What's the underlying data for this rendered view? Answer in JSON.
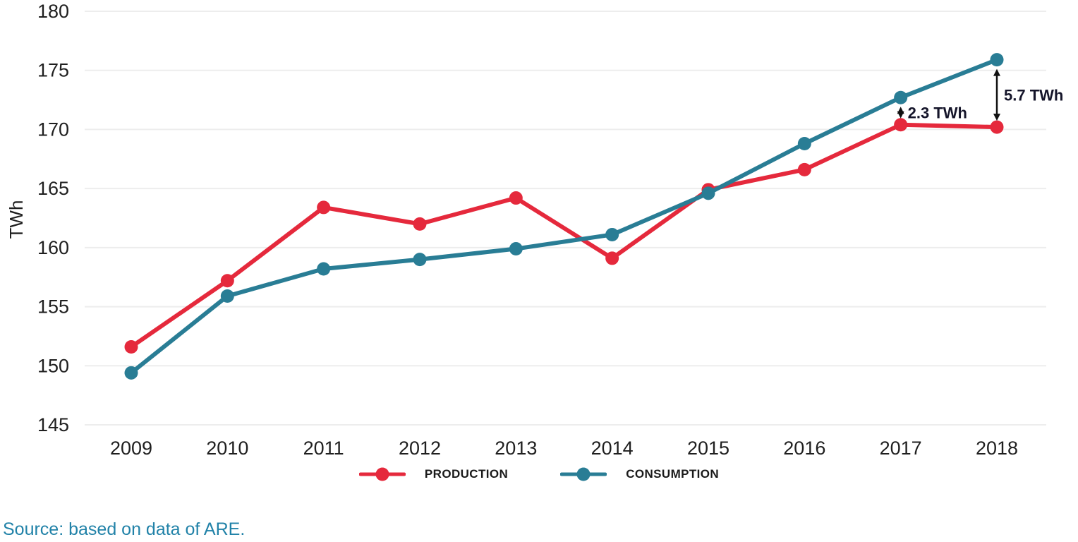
{
  "chart_data": {
    "type": "line",
    "x": [
      2009,
      2010,
      2011,
      2012,
      2013,
      2014,
      2015,
      2016,
      2017,
      2018
    ],
    "series": [
      {
        "name": "PRODUCTION",
        "color": "#e5293c",
        "values": [
          151.6,
          157.2,
          163.4,
          162.0,
          164.2,
          159.1,
          164.9,
          166.6,
          170.4,
          170.2
        ]
      },
      {
        "name": "CONSUMPTION",
        "color": "#297d95",
        "values": [
          149.4,
          155.9,
          158.2,
          159.0,
          159.9,
          161.1,
          164.6,
          168.8,
          172.7,
          175.9
        ]
      }
    ],
    "ylabel": "TWh",
    "ylim": [
      145,
      180
    ],
    "ytick_step": 5,
    "yticks": [
      145,
      150,
      155,
      160,
      165,
      170,
      175,
      180
    ],
    "grid": "horizontal",
    "legend_position": "bottom",
    "annotations": [
      {
        "label": "2.3 TWh",
        "year": 2017
      },
      {
        "label": "5.7 TWh",
        "year": 2018
      }
    ]
  },
  "colors": {
    "gridline": "#ededed",
    "axis_text": "#1f1f1f",
    "annotation_arrow": "#111111",
    "annotation_text": "#15152a",
    "source_text": "#2182a8"
  },
  "source": {
    "text": "Source: based on data of ARE."
  }
}
